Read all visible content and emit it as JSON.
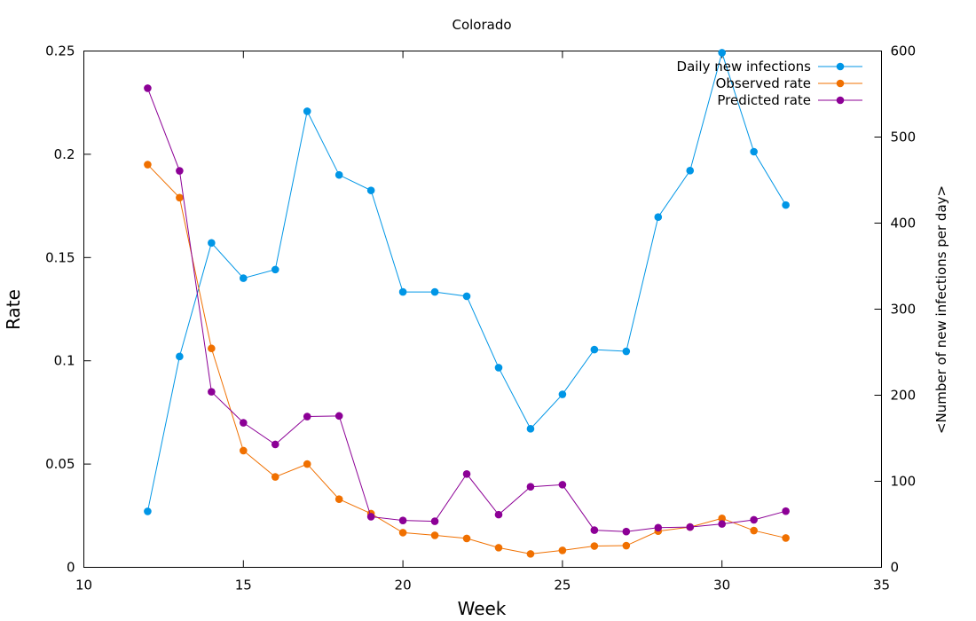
{
  "chart_data": {
    "type": "line",
    "title": "Colorado",
    "xlabel": "Week",
    "ylabel": "Rate",
    "y2label": "<Number of new infections per day>",
    "xlim": [
      10,
      35
    ],
    "ylim": [
      0,
      0.25
    ],
    "y2lim": [
      0,
      600
    ],
    "x_ticks": [
      10,
      15,
      20,
      25,
      30,
      35
    ],
    "y_ticks": [
      "0",
      "0.05",
      "0.1",
      "0.15",
      "0.2",
      "0.25"
    ],
    "y_tick_values": [
      0,
      0.05,
      0.1,
      0.15,
      0.2,
      0.25
    ],
    "y2_ticks": [
      0,
      100,
      200,
      300,
      400,
      500,
      600
    ],
    "grid": false,
    "legend_position": "top-right",
    "x": [
      12,
      13,
      14,
      15,
      16,
      17,
      18,
      19,
      20,
      21,
      22,
      23,
      24,
      25,
      26,
      27,
      28,
      29,
      30,
      31,
      32
    ],
    "series": [
      {
        "name": "Daily new infections",
        "axis": "y2",
        "color": "#0096e6",
        "values": [
          65,
          245,
          377,
          336,
          346,
          530,
          456,
          438,
          320,
          320,
          315,
          232,
          161,
          201,
          253,
          251,
          407,
          461,
          598,
          483,
          421
        ]
      },
      {
        "name": "Observed rate",
        "axis": "y",
        "color": "#f07000",
        "values": [
          0.195,
          0.179,
          0.106,
          0.0565,
          0.0438,
          0.05,
          0.033,
          0.026,
          0.0168,
          0.0155,
          0.014,
          0.0095,
          0.0065,
          0.0082,
          0.0103,
          0.0105,
          0.0175,
          0.0195,
          0.0237,
          0.0178,
          0.0142
        ]
      },
      {
        "name": "Predicted rate",
        "axis": "y",
        "color": "#8c0096",
        "values": [
          0.232,
          0.192,
          0.085,
          0.07,
          0.0595,
          0.073,
          0.0733,
          0.0245,
          0.0227,
          0.0223,
          0.0452,
          0.0255,
          0.039,
          0.04,
          0.018,
          0.0173,
          0.0192,
          0.0195,
          0.021,
          0.023,
          0.0272
        ]
      }
    ]
  }
}
